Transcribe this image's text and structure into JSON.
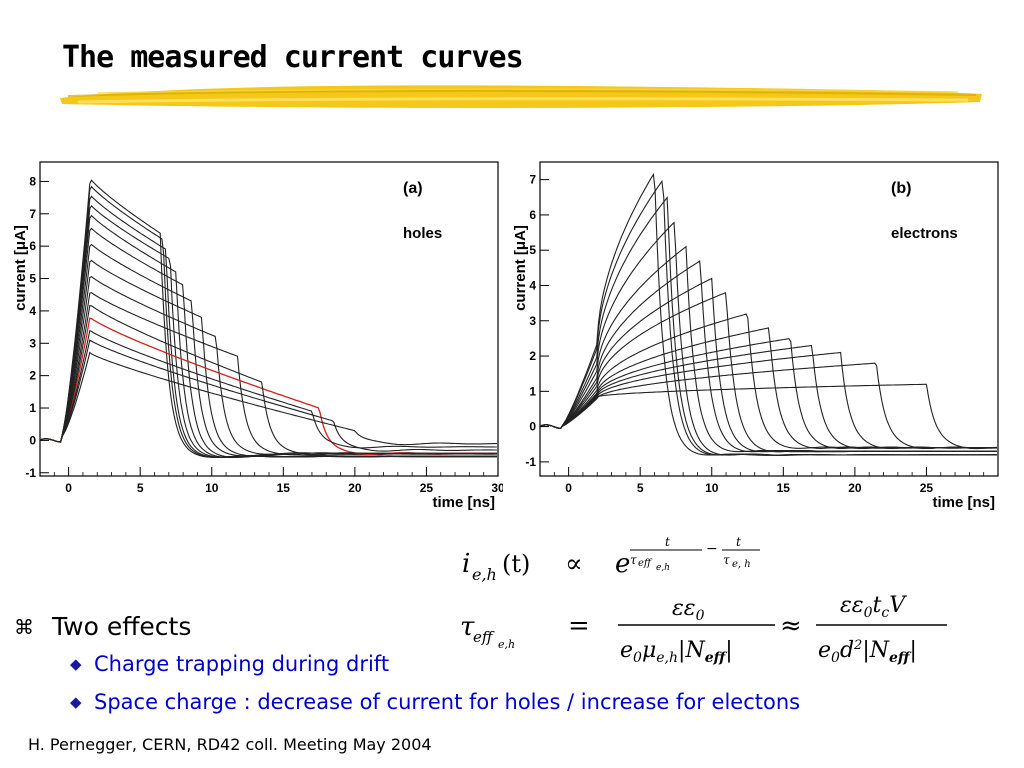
{
  "slide": {
    "title": "The measured current curves",
    "bullet_main": "Two effects",
    "bullet_sub": [
      "Charge trapping during drift",
      "Space charge : decrease of current for holes / increase for electons"
    ],
    "footer": "H. Pernegger, CERN, RD42 coll. Meeting May 2004"
  },
  "icons": {
    "main_bullet": "command-key-icon",
    "sub_bullet": "diamond-icon"
  },
  "colors": {
    "title_underline": "#f2c200",
    "sub_bullet_text": "#0000cc",
    "curve": "#222222",
    "highlight_curve": "#d42020"
  },
  "equations": {
    "line1_lhs": "i",
    "line1_lhs_sub": "e,h",
    "line1_lhs_arg": "(t)",
    "line1_rel": "∝",
    "line1_rhs_base": "e",
    "line2_lhs": "τ",
    "line2_lhs_sub": "eff",
    "line2_lhs_subsub": "e,h",
    "line2_rel": "=",
    "approx": "≈"
  },
  "chart_data": [
    {
      "type": "line",
      "panel_label": "(a)",
      "annotation": "holes",
      "xlabel": "time [ns]",
      "ylabel": "current [μA]",
      "xlim": [
        -2,
        30
      ],
      "ylim": [
        -1.1,
        8.6
      ],
      "xticks": [
        0,
        5,
        10,
        15,
        20,
        25,
        30
      ],
      "yticks": [
        -1,
        0,
        1,
        2,
        3,
        4,
        5,
        6,
        7,
        8
      ],
      "grid": false,
      "highlight_series_index": 10,
      "series": [
        {
          "peak": 8.1,
          "decay_to": 6.4,
          "drop_at": 6.4,
          "tail": -0.5
        },
        {
          "peak": 7.9,
          "decay_to": 6.2,
          "drop_at": 6.6,
          "tail": -0.5
        },
        {
          "peak": 7.6,
          "decay_to": 5.9,
          "drop_at": 6.8,
          "tail": -0.5
        },
        {
          "peak": 7.3,
          "decay_to": 5.6,
          "drop_at": 7.1,
          "tail": -0.5
        },
        {
          "peak": 7.0,
          "decay_to": 5.2,
          "drop_at": 7.5,
          "tail": -0.5
        },
        {
          "peak": 6.6,
          "decay_to": 4.8,
          "drop_at": 8.0,
          "tail": -0.5
        },
        {
          "peak": 6.1,
          "decay_to": 4.3,
          "drop_at": 8.6,
          "tail": -0.45
        },
        {
          "peak": 5.6,
          "decay_to": 3.8,
          "drop_at": 9.3,
          "tail": -0.45
        },
        {
          "peak": 5.1,
          "decay_to": 3.2,
          "drop_at": 10.3,
          "tail": -0.4
        },
        {
          "peak": 4.6,
          "decay_to": 2.6,
          "drop_at": 11.8,
          "tail": -0.4
        },
        {
          "peak": 3.8,
          "decay_to": 1.0,
          "drop_at": 17.5,
          "tail": -0.4
        },
        {
          "peak": 4.2,
          "decay_to": 1.8,
          "drop_at": 13.5,
          "tail": -0.4
        },
        {
          "peak": 3.4,
          "decay_to": 0.9,
          "drop_at": 17.0,
          "tail": -0.2
        },
        {
          "peak": 3.1,
          "decay_to": 0.6,
          "drop_at": 18.5,
          "tail": -0.3
        },
        {
          "peak": 2.7,
          "decay_to": 0.3,
          "drop_at": 20.0,
          "tail": -0.1
        }
      ]
    },
    {
      "type": "line",
      "panel_label": "(b)",
      "annotation": "electrons",
      "xlabel": "time [ns]",
      "ylabel": "current [μA]",
      "xlim": [
        -2,
        30
      ],
      "ylim": [
        -1.4,
        7.5
      ],
      "xticks": [
        0,
        5,
        10,
        15,
        20,
        25
      ],
      "yticks": [
        -1,
        0,
        1,
        2,
        3,
        4,
        5,
        6,
        7
      ],
      "grid": false,
      "series": [
        {
          "start": 5.9,
          "plateau": 7.2,
          "drop_at": 6.0,
          "tail": -0.8
        },
        {
          "start": 5.6,
          "plateau": 7.0,
          "drop_at": 6.6,
          "tail": -0.8
        },
        {
          "start": 5.0,
          "plateau": 6.5,
          "drop_at": 6.9,
          "tail": -0.8
        },
        {
          "start": 4.5,
          "plateau": 5.8,
          "drop_at": 7.4,
          "tail": -0.8
        },
        {
          "start": 4.0,
          "plateau": 5.1,
          "drop_at": 8.2,
          "tail": -0.7
        },
        {
          "start": 3.5,
          "plateau": 4.7,
          "drop_at": 9.2,
          "tail": -0.7
        },
        {
          "start": 3.2,
          "plateau": 4.2,
          "drop_at": 10.0,
          "tail": -0.7
        },
        {
          "start": 2.9,
          "plateau": 3.8,
          "drop_at": 11.0,
          "tail": -0.7
        },
        {
          "start": 2.6,
          "plateau": 3.2,
          "drop_at": 12.5,
          "tail": -0.6
        },
        {
          "start": 2.4,
          "plateau": 2.8,
          "drop_at": 14.0,
          "tail": -0.6
        },
        {
          "start": 2.3,
          "plateau": 2.5,
          "drop_at": 15.5,
          "tail": -0.6
        },
        {
          "start": 2.2,
          "plateau": 2.3,
          "drop_at": 17.0,
          "tail": -0.6
        },
        {
          "start": 2.1,
          "plateau": 2.1,
          "drop_at": 19.0,
          "tail": -0.6
        },
        {
          "start": 2.0,
          "plateau": 1.8,
          "drop_at": 21.5,
          "tail": -0.6
        },
        {
          "start": 2.1,
          "plateau": 1.2,
          "drop_at": 25.0,
          "tail": -0.6
        }
      ]
    }
  ]
}
